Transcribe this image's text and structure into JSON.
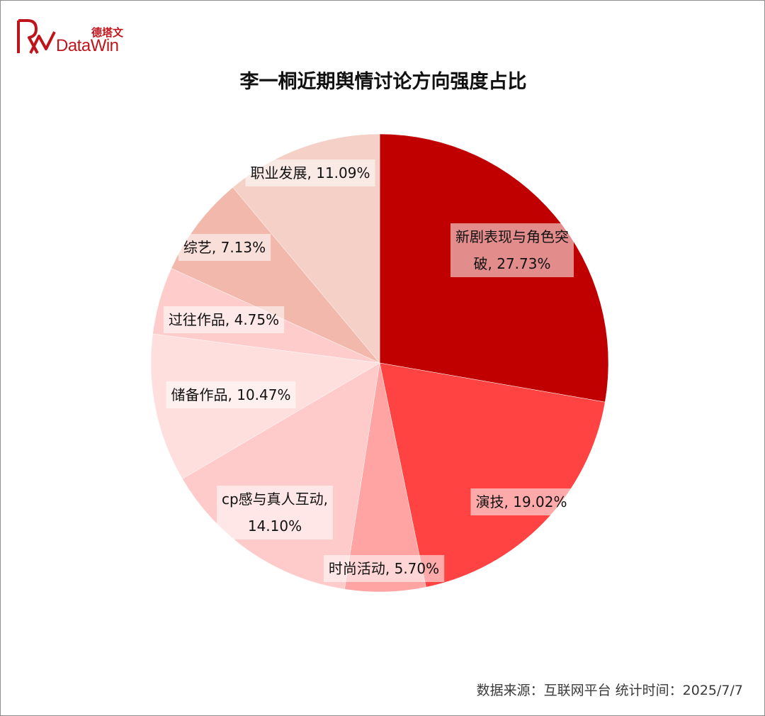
{
  "brand": {
    "logo_cn": "德塔文",
    "logo_en": "DataWin",
    "logo_color": "#c0141b"
  },
  "chart_data": {
    "type": "pie",
    "title": "李一桐近期舆情讨论方向强度占比",
    "start": "12 o'clock",
    "direction": "clockwise",
    "slices": [
      {
        "label": "新剧表现与角色突破",
        "value": 27.73,
        "display": "新剧表现与角色突破, 27.73%",
        "lines": [
          "新剧表现与角色突",
          "破, 27.73%"
        ],
        "color": "#c00000"
      },
      {
        "label": "演技",
        "value": 19.02,
        "display": "演技, 19.02%",
        "lines": [
          "演技, 19.02%"
        ],
        "color": "#ff4343"
      },
      {
        "label": "时尚活动",
        "value": 5.7,
        "display": "时尚活动, 5.70%",
        "lines": [
          "时尚活动, 5.70%"
        ],
        "color": "#ffa3a3"
      },
      {
        "label": "cp感与真人互动",
        "value": 14.1,
        "display": "cp感与真人互动, 14.10%",
        "lines": [
          "cp感与真人互动,",
          "14.10%"
        ],
        "color": "#ffcaca"
      },
      {
        "label": "储备作品",
        "value": 10.47,
        "display": "储备作品, 10.47%",
        "lines": [
          "储备作品, 10.47%"
        ],
        "color": "#ffdede"
      },
      {
        "label": "过往作品",
        "value": 4.75,
        "display": "过往作品, 4.75%",
        "lines": [
          "过往作品, 4.75%"
        ],
        "color": "#ffcccc"
      },
      {
        "label": "综艺",
        "value": 7.13,
        "display": "综艺, 7.13%",
        "lines": [
          "综艺, 7.13%"
        ],
        "color": "#f2b8ab"
      },
      {
        "label": "职业发展",
        "value": 11.09,
        "display": "职业发展, 11.09%",
        "lines": [
          "职业发展, 11.09%"
        ],
        "color": "#f4d0c6"
      }
    ]
  },
  "footer": {
    "source": "数据来源：互联网平台  统计时间：2025/7/7"
  }
}
